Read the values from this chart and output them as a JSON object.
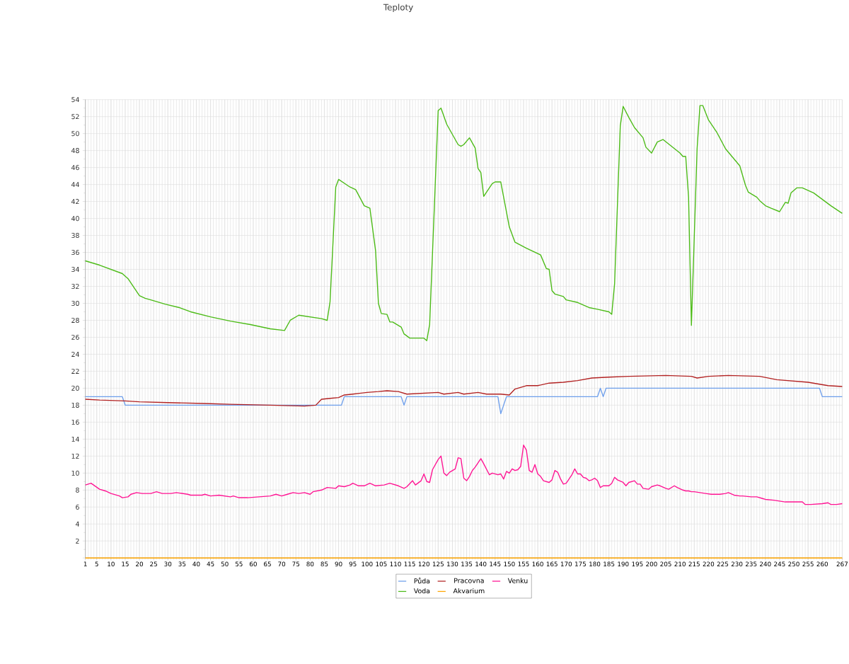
{
  "chart_data": {
    "type": "line",
    "title": "Teploty",
    "xlim": [
      1,
      267
    ],
    "xticks": [
      1,
      5,
      10,
      15,
      20,
      25,
      30,
      35,
      40,
      45,
      50,
      55,
      60,
      65,
      70,
      75,
      80,
      85,
      90,
      95,
      100,
      105,
      110,
      115,
      120,
      125,
      130,
      135,
      140,
      145,
      150,
      155,
      160,
      165,
      170,
      175,
      180,
      185,
      190,
      195,
      200,
      205,
      210,
      215,
      220,
      225,
      230,
      235,
      240,
      245,
      250,
      255,
      260,
      267
    ],
    "ylim": [
      0,
      54
    ],
    "yticks": [
      {
        "value": 0,
        "label": null
      },
      2,
      4,
      6,
      8,
      10,
      12,
      14,
      16,
      18,
      20,
      22,
      24,
      26,
      28,
      30,
      32,
      34,
      36,
      38,
      40,
      42,
      44,
      46,
      48,
      50,
      52,
      54
    ],
    "grid": true,
    "legend": "bottom",
    "marker": "none",
    "line_style": "solid",
    "series": [
      {
        "name": "Půda",
        "color": "#6d9eeb",
        "x": [
          1,
          14,
          15,
          91,
          92,
          112,
          113,
          114,
          146,
          147,
          149,
          181,
          182,
          183,
          184,
          259,
          260,
          267
        ],
        "values": [
          19,
          19,
          18,
          18,
          19,
          19,
          18,
          19,
          19,
          17,
          19,
          19,
          20,
          19,
          20,
          20,
          19,
          19
        ]
      },
      {
        "name": "Pracovna",
        "color": "#b22222",
        "x": [
          1,
          6,
          15,
          20,
          30,
          43,
          52,
          66,
          78,
          82,
          84,
          87,
          90,
          92,
          95,
          100,
          104,
          107,
          111,
          114,
          125,
          127,
          132,
          134,
          139,
          142,
          147,
          150,
          152,
          156,
          160,
          164,
          169,
          174,
          179,
          185,
          192,
          205,
          214,
          216,
          220,
          227,
          238,
          244,
          255,
          262,
          267
        ],
        "values": [
          18.7,
          18.6,
          18.5,
          18.4,
          18.3,
          18.2,
          18.1,
          18.0,
          17.9,
          18.0,
          18.7,
          18.8,
          18.9,
          19.2,
          19.3,
          19.5,
          19.6,
          19.7,
          19.6,
          19.3,
          19.5,
          19.3,
          19.5,
          19.3,
          19.5,
          19.3,
          19.3,
          19.2,
          19.9,
          20.3,
          20.3,
          20.6,
          20.7,
          20.9,
          21.2,
          21.3,
          21.4,
          21.5,
          21.4,
          21.2,
          21.4,
          21.5,
          21.4,
          21.0,
          20.7,
          20.3,
          20.2
        ]
      },
      {
        "name": "Venku",
        "color": "#ff1493",
        "x": [
          1,
          3,
          6,
          8,
          10,
          13,
          14,
          16,
          17,
          19,
          21,
          24,
          26,
          28,
          31,
          33,
          37,
          38,
          42,
          43,
          45,
          48,
          52,
          53,
          55,
          58,
          62,
          66,
          68,
          70,
          72,
          74,
          76,
          78,
          80,
          81,
          84,
          86,
          89,
          90,
          92,
          94,
          95,
          97,
          99,
          101,
          103,
          106,
          108,
          111,
          113,
          114,
          116,
          117,
          119,
          120,
          121,
          122,
          123,
          125,
          126,
          127,
          128,
          129,
          131,
          132,
          133,
          134,
          135,
          136,
          137,
          138,
          140,
          141,
          143,
          144,
          146,
          147,
          148,
          149,
          150,
          151,
          152,
          153,
          154,
          155,
          156,
          157,
          158,
          159,
          160,
          161,
          162,
          164,
          165,
          166,
          167,
          168,
          169,
          170,
          172,
          173,
          174,
          175,
          176,
          177,
          178,
          179,
          180,
          181,
          182,
          183,
          185,
          186,
          187,
          188,
          190,
          191,
          192,
          194,
          195,
          196,
          197,
          199,
          200,
          202,
          203,
          205,
          206,
          207,
          208,
          209,
          211,
          212,
          213,
          214,
          215,
          217,
          219,
          221,
          223,
          224,
          226,
          227,
          229,
          231,
          232,
          235,
          237,
          239,
          240,
          243,
          245,
          247,
          249,
          251,
          253,
          254,
          256,
          260,
          262,
          263,
          265,
          267
        ],
        "values": [
          8.6,
          8.8,
          8.1,
          7.9,
          7.6,
          7.3,
          7.1,
          7.2,
          7.5,
          7.7,
          7.6,
          7.6,
          7.8,
          7.6,
          7.6,
          7.7,
          7.5,
          7.4,
          7.4,
          7.5,
          7.3,
          7.4,
          7.2,
          7.3,
          7.1,
          7.1,
          7.2,
          7.3,
          7.5,
          7.3,
          7.5,
          7.7,
          7.6,
          7.7,
          7.5,
          7.8,
          8.0,
          8.3,
          8.2,
          8.5,
          8.4,
          8.6,
          8.8,
          8.5,
          8.5,
          8.8,
          8.5,
          8.6,
          8.8,
          8.5,
          8.2,
          8.4,
          9.1,
          8.6,
          9.1,
          9.9,
          9.0,
          8.9,
          10.4,
          11.6,
          12.0,
          10.0,
          9.7,
          10.1,
          10.5,
          11.8,
          11.7,
          9.4,
          9.1,
          9.6,
          10.3,
          10.7,
          11.7,
          11.1,
          9.8,
          10.0,
          9.8,
          9.9,
          9.3,
          10.2,
          10.0,
          10.5,
          10.3,
          10.4,
          10.8,
          13.3,
          12.7,
          10.3,
          10.1,
          11.0,
          9.9,
          9.6,
          9.1,
          8.9,
          9.2,
          10.3,
          10.1,
          9.3,
          8.7,
          8.8,
          9.8,
          10.5,
          9.9,
          9.9,
          9.5,
          9.4,
          9.1,
          9.2,
          9.4,
          9.1,
          8.3,
          8.5,
          8.5,
          8.8,
          9.5,
          9.2,
          8.9,
          8.5,
          8.9,
          9.1,
          8.7,
          8.7,
          8.2,
          8.1,
          8.4,
          8.6,
          8.5,
          8.2,
          8.1,
          8.3,
          8.5,
          8.3,
          8.0,
          7.9,
          7.9,
          7.8,
          7.8,
          7.7,
          7.6,
          7.5,
          7.5,
          7.5,
          7.6,
          7.7,
          7.4,
          7.3,
          7.3,
          7.2,
          7.2,
          7.0,
          6.9,
          6.8,
          6.7,
          6.6,
          6.6,
          6.6,
          6.6,
          6.3,
          6.3,
          6.4,
          6.5,
          6.3,
          6.3,
          6.4
        ]
      },
      {
        "name": "Voda",
        "color": "#4cbb17",
        "x": [
          1,
          6,
          10,
          14,
          16,
          19,
          20,
          22,
          24,
          29,
          34,
          38,
          45,
          52,
          59,
          66,
          71,
          73,
          76,
          80,
          84,
          86,
          87,
          89,
          90,
          94,
          96,
          99,
          101,
          103,
          104,
          105,
          107,
          108,
          109,
          112,
          113,
          115,
          120,
          121,
          122,
          125,
          126,
          128,
          132,
          133,
          134,
          136,
          138,
          139,
          140,
          141,
          144,
          145,
          147,
          150,
          152,
          156,
          161,
          163,
          164,
          165,
          166,
          169,
          170,
          174,
          178,
          181,
          185,
          186,
          187,
          189,
          190,
          192,
          194,
          197,
          198,
          200,
          202,
          204,
          210,
          211,
          212,
          213,
          214,
          216,
          217,
          218,
          220,
          223,
          226,
          231,
          233,
          234,
          237,
          238,
          240,
          242,
          245,
          247,
          248,
          249,
          251,
          253,
          257,
          263,
          267
        ],
        "values": [
          35.0,
          34.5,
          34.0,
          33.5,
          32.9,
          31.4,
          30.9,
          30.6,
          30.4,
          29.9,
          29.5,
          29.0,
          28.4,
          27.9,
          27.5,
          27.0,
          26.8,
          28.0,
          28.6,
          28.4,
          28.2,
          28.0,
          30.2,
          43.7,
          44.6,
          43.7,
          43.4,
          41.5,
          41.2,
          36.2,
          30.0,
          28.8,
          28.7,
          27.8,
          27.8,
          27.2,
          26.4,
          25.9,
          25.9,
          25.6,
          27.5,
          52.7,
          53.0,
          51.1,
          48.7,
          48.5,
          48.7,
          49.5,
          48.3,
          45.9,
          45.4,
          42.6,
          44.1,
          44.3,
          44.3,
          39.0,
          37.2,
          36.5,
          35.7,
          34.1,
          34.0,
          31.5,
          31.1,
          30.8,
          30.4,
          30.1,
          29.5,
          29.3,
          29.0,
          28.7,
          32.3,
          50.9,
          53.2,
          51.9,
          50.7,
          49.5,
          48.4,
          47.7,
          49.0,
          49.3,
          47.7,
          47.3,
          47.3,
          42.5,
          27.4,
          48.2,
          53.3,
          53.3,
          51.6,
          50.1,
          48.2,
          46.2,
          43.9,
          43.1,
          42.5,
          42.1,
          41.5,
          41.2,
          40.8,
          41.9,
          41.8,
          43.0,
          43.6,
          43.6,
          43.0,
          41.5,
          40.6
        ]
      },
      {
        "name": "Akvarium",
        "color": "#ffa500",
        "x": [
          1,
          267
        ],
        "values": [
          0,
          0
        ]
      }
    ]
  }
}
